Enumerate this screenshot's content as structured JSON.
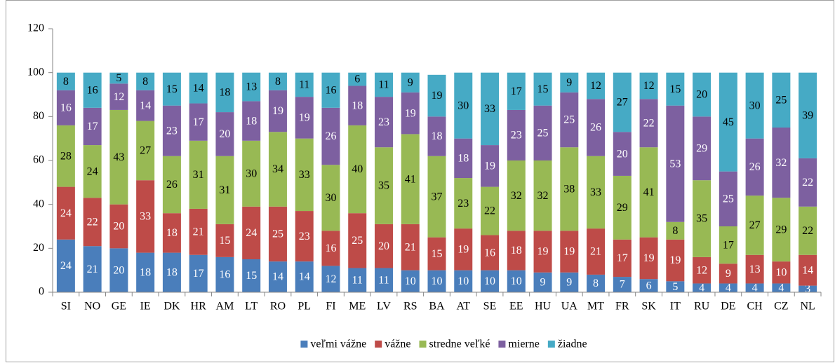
{
  "chart_data": {
    "type": "stacked_bar",
    "categories": [
      "SI",
      "NO",
      "GE",
      "IE",
      "DK",
      "HR",
      "AM",
      "LT",
      "RO",
      "PL",
      "FI",
      "ME",
      "LV",
      "RS",
      "BA",
      "AT",
      "SE",
      "EE",
      "HU",
      "UA",
      "MT",
      "FR",
      "SK",
      "IT",
      "RU",
      "DE",
      "CH",
      "CZ",
      "NL"
    ],
    "series": [
      {
        "name": "veľmi vážne",
        "color": "#4a7ebb",
        "label_color": "#ffffff",
        "values": [
          24,
          21,
          20,
          18,
          18,
          17,
          16,
          15,
          14,
          14,
          12,
          11,
          11,
          10,
          10,
          10,
          10,
          10,
          9,
          9,
          8,
          7,
          6,
          5,
          4,
          4,
          4,
          4,
          3
        ]
      },
      {
        "name": "vážne",
        "color": "#be4b48",
        "label_color": "#ffffff",
        "values": [
          24,
          22,
          20,
          33,
          18,
          21,
          15,
          24,
          25,
          23,
          16,
          25,
          20,
          21,
          15,
          19,
          16,
          18,
          19,
          19,
          21,
          17,
          19,
          19,
          12,
          9,
          13,
          10,
          14
        ]
      },
      {
        "name": "stredne veľké",
        "color": "#98b954",
        "label_color": "#000000",
        "values": [
          28,
          24,
          43,
          27,
          26,
          31,
          31,
          30,
          34,
          33,
          30,
          40,
          35,
          41,
          37,
          23,
          22,
          32,
          32,
          38,
          33,
          29,
          41,
          8,
          35,
          17,
          27,
          29,
          22
        ]
      },
      {
        "name": "mierne",
        "color": "#7d60a0",
        "label_color": "#ffffff",
        "values": [
          16,
          17,
          12,
          14,
          23,
          17,
          20,
          18,
          19,
          19,
          26,
          18,
          23,
          19,
          18,
          18,
          19,
          23,
          25,
          25,
          26,
          20,
          22,
          53,
          29,
          25,
          26,
          32,
          22
        ]
      },
      {
        "name": "žiadne",
        "color": "#46aac5",
        "label_color": "#000000",
        "values": [
          8,
          16,
          5,
          8,
          15,
          14,
          18,
          13,
          8,
          11,
          16,
          6,
          11,
          9,
          19,
          30,
          33,
          17,
          15,
          9,
          12,
          27,
          12,
          15,
          20,
          45,
          30,
          25,
          39
        ]
      }
    ],
    "ylim": [
      0,
      120
    ],
    "yticks": [
      0,
      20,
      40,
      60,
      80,
      100,
      120
    ],
    "grid": false,
    "legend": "bottom"
  }
}
